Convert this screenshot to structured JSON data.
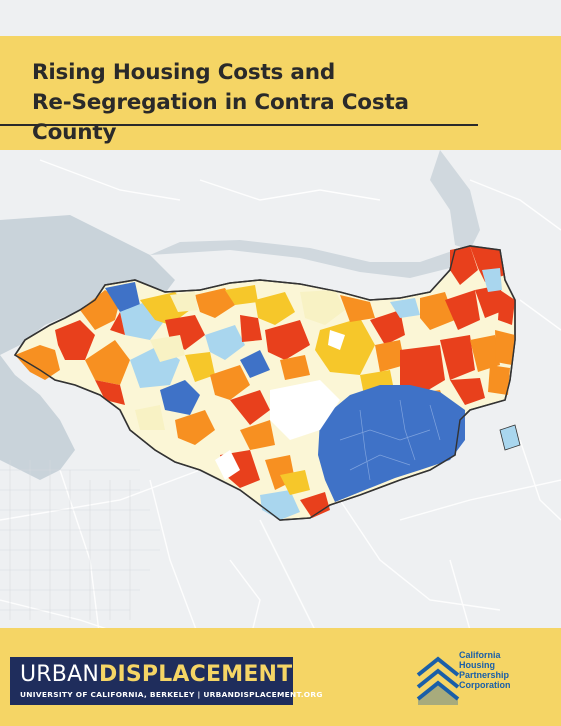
{
  "title": {
    "line1": "Rising Housing Costs and",
    "line2": "Re-Segregation in Contra Costa County"
  },
  "footer": {
    "urban": "URBAN",
    "displacement": "DISPLACEMENT",
    "subtitle": "UNIVERSITY OF CALIFORNIA, BERKELEY | URBANDISPLACEMENT.ORG",
    "partner_line1": "California",
    "partner_line2": "Housing",
    "partner_line3": "Partnership",
    "partner_line4": "Corporation"
  },
  "colors": {
    "band": "#f5d565",
    "navy": "#1f2d5c",
    "red": "#e8401c",
    "orange": "#f79021",
    "yellow": "#f6c72a",
    "pale_yellow": "#f8f2c4",
    "light_blue": "#a9d6ee",
    "blue": "#3f72c7"
  }
}
